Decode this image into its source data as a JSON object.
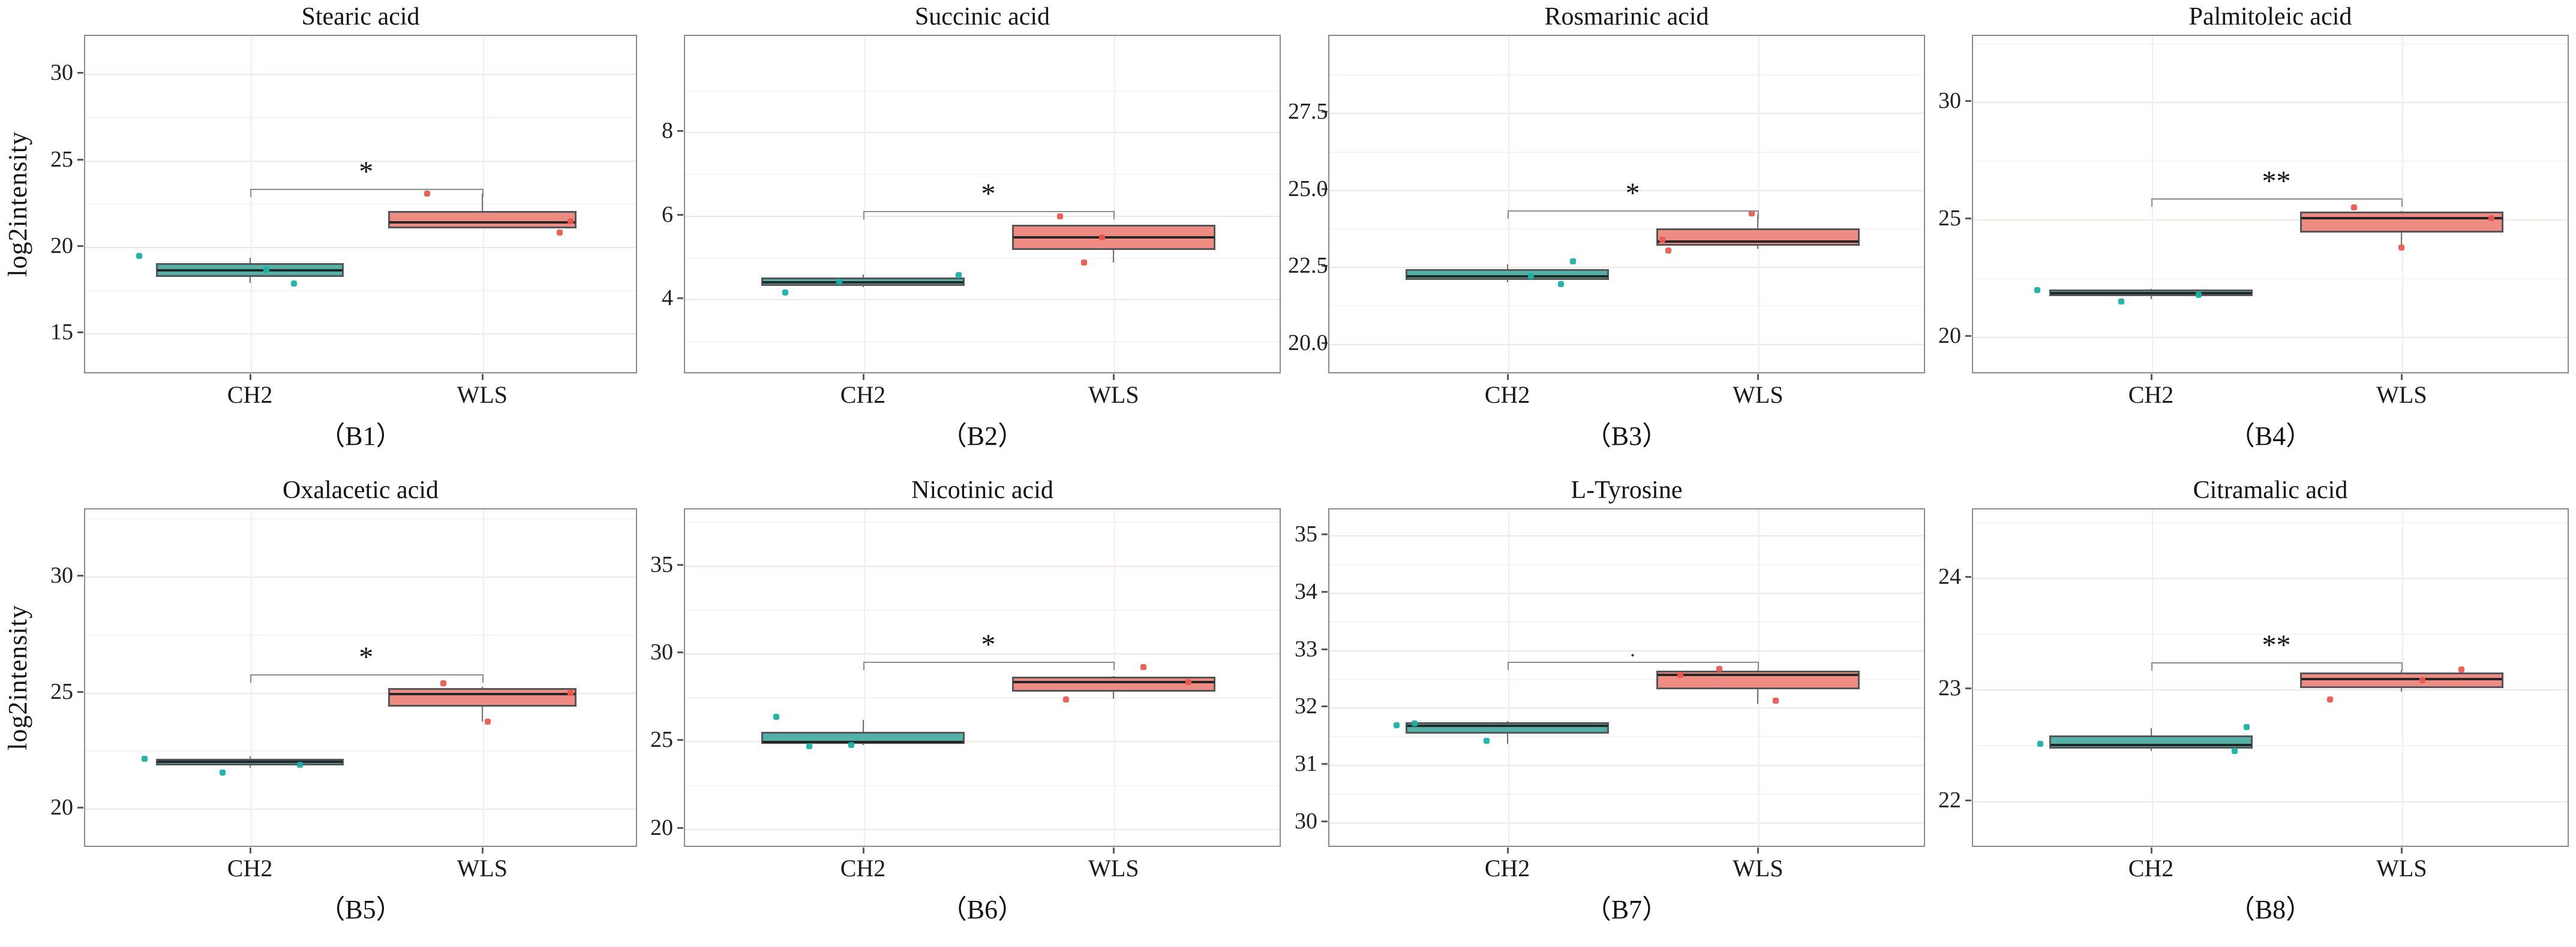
{
  "figure_title": "",
  "y_axis_label": "log2intensity",
  "groups": [
    "CH2",
    "WLS"
  ],
  "colors": {
    "teal_fill": "#54b1a7",
    "teal_point": "#19b1a8",
    "salmon_fill": "#ee8b82",
    "red_point": "#ed584e",
    "box_border": "#55565a",
    "median": "#262626",
    "grid_major": "#f1e6e6",
    "grid_minor": "#f9f2f2",
    "panel_border": "#8a8a8a",
    "bracket": "#8d8d8d"
  },
  "chart_data": {
    "type": "boxplot-grid",
    "rows": 2,
    "cols": 4,
    "x_categories": [
      "CH2",
      "WLS"
    ],
    "panels": [
      {
        "id": "B1",
        "title": "Stearic acid",
        "caption": "（B1）",
        "show_ylabel": true,
        "ylim": [
          12.6,
          32.2
        ],
        "ticks": [
          15,
          20,
          25,
          30
        ],
        "tick_labels": [
          "15",
          "20",
          "25",
          "30"
        ],
        "sig": {
          "label": "*",
          "bracket_y": 23.3
        },
        "boxes": [
          {
            "group": "CH2",
            "q1": 18.2,
            "median": 18.55,
            "q3": 19.0,
            "whisker_low": 17.85,
            "whisker_high": 19.3,
            "points": [
              {
                "fx": 0.1,
                "v": 19.4
              },
              {
                "fx": 0.33,
                "v": 18.6
              },
              {
                "fx": 0.38,
                "v": 17.8
              }
            ]
          },
          {
            "group": "WLS",
            "q1": 21.0,
            "median": 21.35,
            "q3": 22.0,
            "whisker_low": 21.0,
            "whisker_high": 23.0,
            "points": [
              {
                "fx": 0.62,
                "v": 23.0
              },
              {
                "fx": 0.88,
                "v": 21.4
              },
              {
                "fx": 0.86,
                "v": 20.75
              }
            ]
          }
        ]
      },
      {
        "id": "B2",
        "title": "Succinic acid",
        "caption": "（B2）",
        "show_ylabel": false,
        "ylim": [
          2.2,
          10.3
        ],
        "ticks": [
          4,
          6,
          8
        ],
        "tick_labels": [
          "4",
          "6",
          "8"
        ],
        "sig": {
          "label": "*",
          "bracket_y": 6.08
        },
        "boxes": [
          {
            "group": "CH2",
            "q1": 4.3,
            "median": 4.38,
            "q3": 4.5,
            "whisker_low": 4.26,
            "whisker_high": 4.57,
            "points": [
              {
                "fx": 0.17,
                "v": 4.13
              },
              {
                "fx": 0.26,
                "v": 4.4
              },
              {
                "fx": 0.46,
                "v": 4.55
              }
            ]
          },
          {
            "group": "WLS",
            "q1": 5.15,
            "median": 5.45,
            "q3": 5.75,
            "whisker_low": 4.85,
            "whisker_high": 5.75,
            "points": [
              {
                "fx": 0.63,
                "v": 5.95
              },
              {
                "fx": 0.7,
                "v": 5.45
              },
              {
                "fx": 0.67,
                "v": 4.85
              }
            ]
          }
        ]
      },
      {
        "id": "B3",
        "title": "Rosmarinic acid",
        "caption": "（B3）",
        "show_ylabel": false,
        "ylim": [
          19.0,
          30.0
        ],
        "ticks": [
          20,
          22.5,
          25,
          27.5
        ],
        "tick_labels": [
          "20.0",
          "22.5",
          "25.0",
          "27.5"
        ],
        "sig": {
          "label": "*",
          "bracket_y": 24.3
        },
        "boxes": [
          {
            "group": "CH2",
            "q1": 22.03,
            "median": 22.15,
            "q3": 22.38,
            "whisker_low": 21.95,
            "whisker_high": 22.55,
            "points": [
              {
                "fx": 0.41,
                "v": 22.65
              },
              {
                "fx": 0.34,
                "v": 22.15
              },
              {
                "fx": 0.39,
                "v": 21.9
              }
            ]
          },
          {
            "group": "WLS",
            "q1": 23.15,
            "median": 23.28,
            "q3": 23.72,
            "whisker_low": 23.05,
            "whisker_high": 24.15,
            "points": [
              {
                "fx": 0.56,
                "v": 23.35
              },
              {
                "fx": 0.57,
                "v": 23.0
              },
              {
                "fx": 0.71,
                "v": 24.2
              }
            ]
          }
        ]
      },
      {
        "id": "B4",
        "title": "Palmitoleic acid",
        "caption": "（B4）",
        "show_ylabel": false,
        "ylim": [
          18.4,
          32.8
        ],
        "ticks": [
          20,
          25,
          30
        ],
        "tick_labels": [
          "20",
          "25",
          "30"
        ],
        "sig": {
          "label": "**",
          "bracket_y": 25.85
        },
        "boxes": [
          {
            "group": "CH2",
            "q1": 21.68,
            "median": 21.82,
            "q3": 21.97,
            "whisker_low": 21.55,
            "whisker_high": 22.0,
            "points": [
              {
                "fx": 0.11,
                "v": 21.95
              },
              {
                "fx": 0.25,
                "v": 21.45
              },
              {
                "fx": 0.38,
                "v": 21.75
              }
            ]
          },
          {
            "group": "WLS",
            "q1": 24.4,
            "median": 25.0,
            "q3": 25.27,
            "whisker_low": 23.8,
            "whisker_high": 25.3,
            "points": [
              {
                "fx": 0.64,
                "v": 25.45
              },
              {
                "fx": 0.87,
                "v": 25.0
              },
              {
                "fx": 0.72,
                "v": 23.75
              }
            ]
          }
        ]
      },
      {
        "id": "B5",
        "title": "Oxalacetic acid",
        "caption": "（B5）",
        "show_ylabel": true,
        "ylim": [
          18.3,
          32.9
        ],
        "ticks": [
          20,
          25,
          30
        ],
        "tick_labels": [
          "20",
          "25",
          "30"
        ],
        "sig": {
          "label": "*",
          "bracket_y": 25.75
        },
        "boxes": [
          {
            "group": "CH2",
            "q1": 21.82,
            "median": 21.96,
            "q3": 22.1,
            "whisker_low": 21.7,
            "whisker_high": 22.2,
            "points": [
              {
                "fx": 0.11,
                "v": 22.1
              },
              {
                "fx": 0.25,
                "v": 21.5
              },
              {
                "fx": 0.39,
                "v": 21.85
              }
            ]
          },
          {
            "group": "WLS",
            "q1": 24.35,
            "median": 24.9,
            "q3": 25.15,
            "whisker_low": 23.7,
            "whisker_high": 25.2,
            "points": [
              {
                "fx": 0.65,
                "v": 25.35
              },
              {
                "fx": 0.88,
                "v": 24.95
              },
              {
                "fx": 0.73,
                "v": 23.7
              }
            ]
          }
        ]
      },
      {
        "id": "B6",
        "title": "Nicotinic acid",
        "caption": "（B6）",
        "show_ylabel": false,
        "ylim": [
          18.9,
          38.2
        ],
        "ticks": [
          20,
          25,
          30,
          35
        ],
        "tick_labels": [
          "20",
          "25",
          "30",
          "35"
        ],
        "sig": {
          "label": "*",
          "bracket_y": 29.45
        },
        "boxes": [
          {
            "group": "CH2",
            "q1": 24.78,
            "median": 24.88,
            "q3": 25.45,
            "whisker_low": 24.72,
            "whisker_high": 26.15,
            "points": [
              {
                "fx": 0.155,
                "v": 26.3
              },
              {
                "fx": 0.21,
                "v": 24.65
              },
              {
                "fx": 0.28,
                "v": 24.7
              }
            ]
          },
          {
            "group": "WLS",
            "q1": 27.75,
            "median": 28.3,
            "q3": 28.6,
            "whisker_low": 27.35,
            "whisker_high": 28.62,
            "points": [
              {
                "fx": 0.64,
                "v": 27.3
              },
              {
                "fx": 0.77,
                "v": 29.15
              },
              {
                "fx": 0.845,
                "v": 28.3
              }
            ]
          }
        ]
      },
      {
        "id": "B7",
        "title": "L-Tyrosine",
        "caption": "（B7）",
        "show_ylabel": false,
        "ylim": [
          29.55,
          35.45
        ],
        "ticks": [
          30,
          31,
          32,
          33,
          34,
          35
        ],
        "tick_labels": [
          "30",
          "31",
          "32",
          "33",
          "34",
          "35"
        ],
        "sig": {
          "label": ".",
          "bracket_y": 32.78,
          "small": true
        },
        "boxes": [
          {
            "group": "CH2",
            "q1": 31.52,
            "median": 31.66,
            "q3": 31.72,
            "whisker_low": 31.35,
            "whisker_high": 31.74,
            "points": [
              {
                "fx": 0.115,
                "v": 31.67
              },
              {
                "fx": 0.145,
                "v": 31.7
              },
              {
                "fx": 0.265,
                "v": 31.4
              }
            ]
          },
          {
            "group": "WLS",
            "q1": 32.3,
            "median": 32.55,
            "q3": 32.62,
            "whisker_low": 32.05,
            "whisker_high": 32.63,
            "points": [
              {
                "fx": 0.655,
                "v": 32.65
              },
              {
                "fx": 0.59,
                "v": 32.55
              },
              {
                "fx": 0.75,
                "v": 32.1
              }
            ]
          }
        ]
      },
      {
        "id": "B8",
        "title": "Citramalic acid",
        "caption": "（B8）",
        "show_ylabel": false,
        "ylim": [
          21.58,
          24.61
        ],
        "ticks": [
          22,
          23,
          24
        ],
        "tick_labels": [
          "22",
          "23",
          "24"
        ],
        "sig": {
          "label": "**",
          "bracket_y": 23.23
        },
        "boxes": [
          {
            "group": "CH2",
            "q1": 22.46,
            "median": 22.49,
            "q3": 22.58,
            "whisker_low": 22.44,
            "whisker_high": 22.64,
            "points": [
              {
                "fx": 0.115,
                "v": 22.5
              },
              {
                "fx": 0.46,
                "v": 22.65
              },
              {
                "fx": 0.44,
                "v": 22.44
              }
            ]
          },
          {
            "group": "WLS",
            "q1": 23.0,
            "median": 23.08,
            "q3": 23.14,
            "whisker_low": 22.97,
            "whisker_high": 23.16,
            "points": [
              {
                "fx": 0.6,
                "v": 22.9
              },
              {
                "fx": 0.755,
                "v": 23.07
              },
              {
                "fx": 0.82,
                "v": 23.17
              }
            ]
          }
        ]
      }
    ],
    "layout": {
      "group_centers_fx": [
        0.3,
        0.72
      ],
      "box_halfwidth_fx": 0.17,
      "grid": "major+minor",
      "legend": "none"
    }
  }
}
